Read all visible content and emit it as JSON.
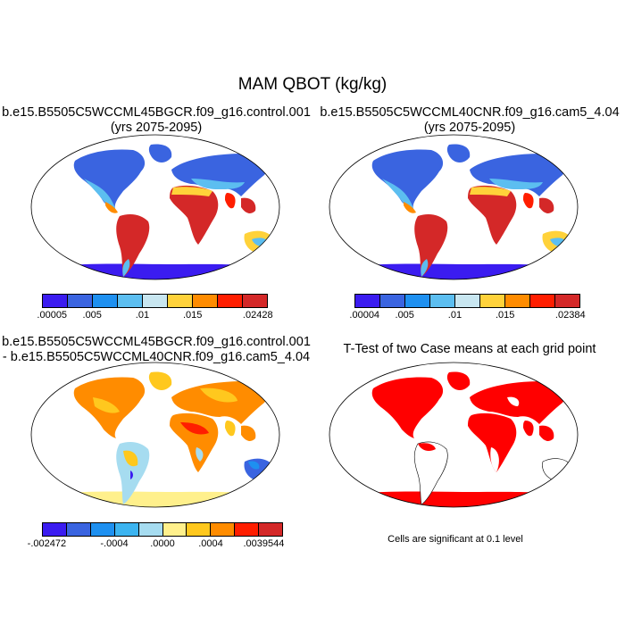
{
  "title": "MAM QBOT (kg/kg)",
  "panels": {
    "top_left": {
      "title_line1": "b.e15.B5505C5WCCML45BGCR.f09_g16.control.001",
      "title_line2": "(yrs 2075-2095)",
      "colorbar": {
        "colors": [
          "#3b1cf0",
          "#3a64e0",
          "#1e90f0",
          "#5cbef0",
          "#c8e6f0",
          "#ffd23a",
          "#ff8c00",
          "#ff1e00",
          "#d42828"
        ],
        "labels": [
          ".00005",
          ".005",
          ".01",
          ".015",
          ".02428"
        ]
      }
    },
    "top_right": {
      "title_line1": "b.e15.B5505C5WCCML40CNR.f09_g16.cam5_4.04",
      "title_line2": "(yrs 2075-2095)",
      "colorbar": {
        "colors": [
          "#3b1cf0",
          "#3a64e0",
          "#1e90f0",
          "#5cbef0",
          "#c8e6f0",
          "#ffd23a",
          "#ff8c00",
          "#ff1e00",
          "#d42828"
        ],
        "labels": [
          ".00004",
          ".005",
          ".01",
          ".015",
          ".02384"
        ]
      }
    },
    "bottom_left": {
      "title_line1": "b.e15.B5505C5WCCML45BGCR.f09_g16.control.001",
      "title_line2": "- b.e15.B5505C5WCCML40CNR.f09_g16.cam5_4.04",
      "colorbar": {
        "colors": [
          "#3b1cf0",
          "#3a64e0",
          "#1e90f0",
          "#3cb4f0",
          "#a6dcf0",
          "#fff08c",
          "#ffc81e",
          "#ff8c00",
          "#ff1e00",
          "#d42828"
        ],
        "labels": [
          "-.002472",
          "-.0004",
          ".0000",
          ".0004",
          ".0039544"
        ]
      }
    },
    "bottom_right": {
      "title": "T-Test of two Case means at each grid point",
      "note": "Cells are significant at 0.1 level",
      "significant_color": "#ff0000"
    }
  }
}
